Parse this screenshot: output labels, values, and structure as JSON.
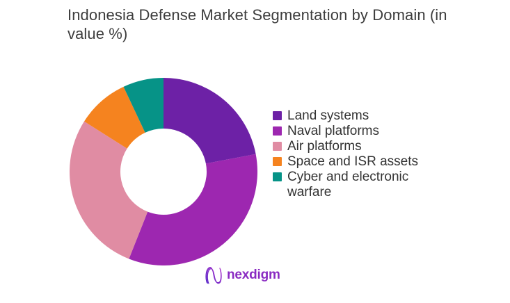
{
  "chart_data": {
    "type": "pie",
    "subtype": "donut",
    "title": "Indonesia Defense Market Segmentation by Domain (in value %)",
    "categories": [
      "Land systems",
      "Naval platforms",
      "Air platforms",
      "Space and ISR assets",
      "Cyber and electronic warfare"
    ],
    "values": [
      22,
      34,
      28,
      9,
      7
    ],
    "unit": "%",
    "colors": [
      "#6d21a6",
      "#9d27b0",
      "#e08ca3",
      "#f5831f",
      "#069387"
    ],
    "start_angle_deg": 0,
    "direction": "clockwise",
    "inner_radius_ratio": 0.46,
    "legend_position": "right",
    "data_labels": "none",
    "background": "#ffffff"
  },
  "branding": {
    "logo_text": "nexdigm",
    "wordmark_color": "#8a2bc2",
    "mark_gradient_start": "#5b2ac9",
    "mark_gradient_end": "#a82bc9"
  }
}
